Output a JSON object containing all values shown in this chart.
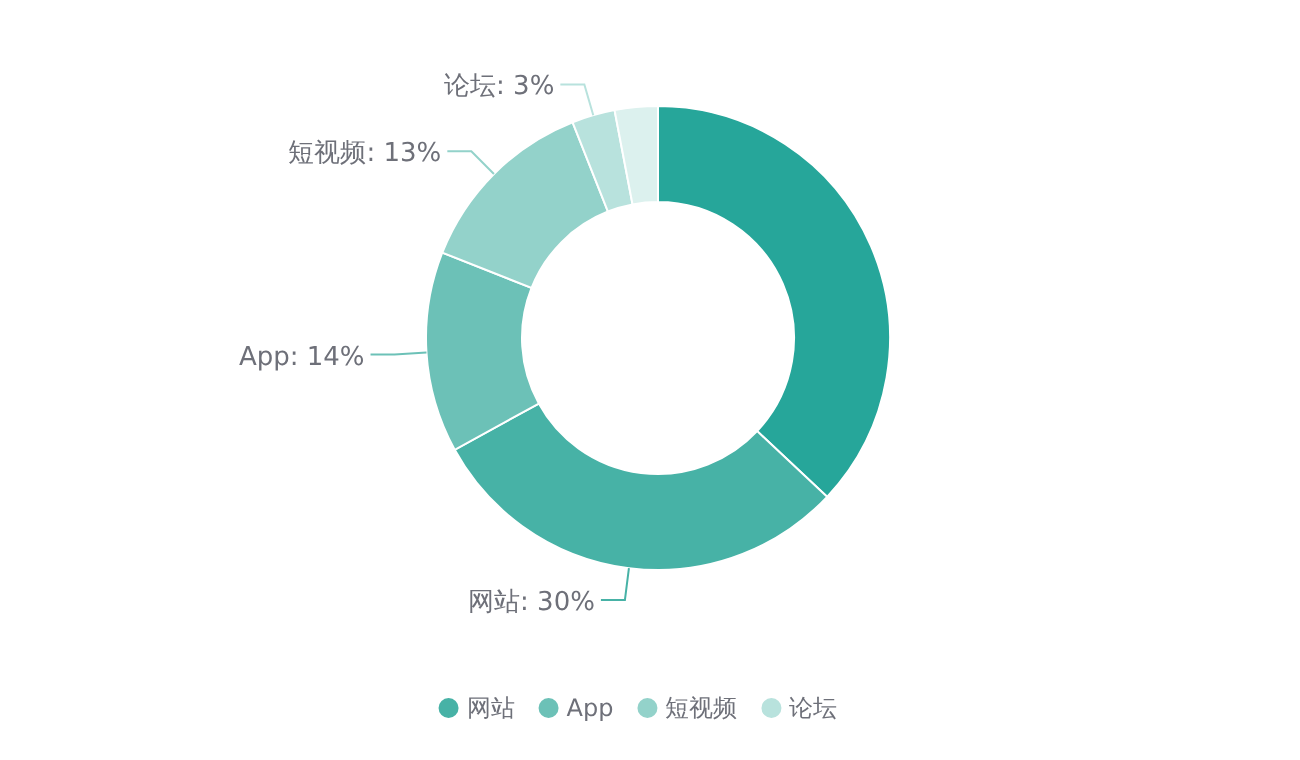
{
  "chart_data": {
    "type": "donut",
    "categories": [
      null,
      "网站",
      "App",
      "短视频",
      "论坛",
      null
    ],
    "values": [
      37,
      30,
      14,
      13,
      3,
      3
    ],
    "colors": [
      "#26a69a",
      "#47b2a6",
      "#6cc1b7",
      "#93d2ca",
      "#b8e2dd",
      "#dcf1ee"
    ],
    "value_labels": [
      null,
      "网站: 30%",
      "App: 14%",
      "短视频: 13%",
      "论坛: 3%",
      null
    ],
    "legend": "bottom"
  }
}
